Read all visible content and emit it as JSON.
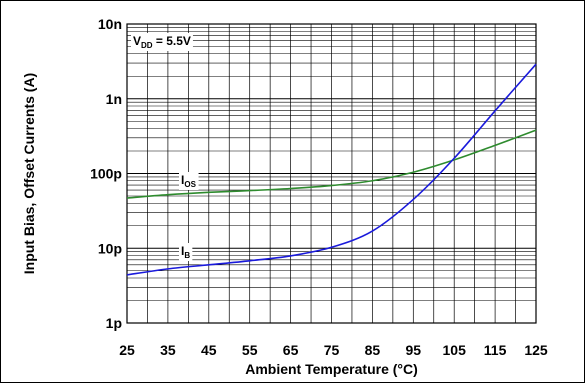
{
  "chart_data": {
    "type": "line",
    "xlabel": "Ambient Temperature (°C)",
    "ylabel": "Input Bias, Offset Currents (A)",
    "xlim": [
      25,
      125
    ],
    "ylim": [
      1e-12,
      1e-08
    ],
    "y_scale": "log",
    "grid": true,
    "x_ticks": [
      25,
      35,
      45,
      55,
      65,
      75,
      85,
      95,
      105,
      115,
      125
    ],
    "x_tick_labels": [
      "25",
      "35",
      "45",
      "55",
      "65",
      "75",
      "85",
      "95",
      "105",
      "115",
      "125"
    ],
    "y_ticks": [
      1e-12,
      1e-11,
      1e-10,
      1e-09,
      1e-08
    ],
    "y_tick_labels": [
      "1p",
      "10p",
      "100p",
      "1n",
      "10n"
    ],
    "annotations": {
      "condition": {
        "main": "V",
        "sub": "DD",
        "rest": " = 5.5V"
      },
      "ios": {
        "main": "I",
        "sub": "OS"
      },
      "ib": {
        "main": "I",
        "sub": "B"
      }
    },
    "series": [
      {
        "key": "ios",
        "color": "#2e8b2e",
        "x": [
          25,
          35,
          45,
          55,
          65,
          75,
          85,
          95,
          105,
          115,
          125
        ],
        "y": [
          4.7e-11,
          5.2e-11,
          5.6e-11,
          5.9e-11,
          6.3e-11,
          6.9e-11,
          8e-11,
          1.04e-10,
          1.52e-10,
          2.38e-10,
          3.8e-10
        ]
      },
      {
        "key": "ib",
        "color": "#1a1adb",
        "x": [
          25,
          35,
          45,
          55,
          65,
          75,
          85,
          95,
          105,
          115,
          125
        ],
        "y": [
          4.4e-12,
          5.3e-12,
          6e-12,
          6.8e-12,
          7.9e-12,
          1.03e-11,
          1.7e-11,
          4.5e-11,
          1.6e-10,
          6.9e-10,
          2.9e-09
        ]
      }
    ]
  }
}
